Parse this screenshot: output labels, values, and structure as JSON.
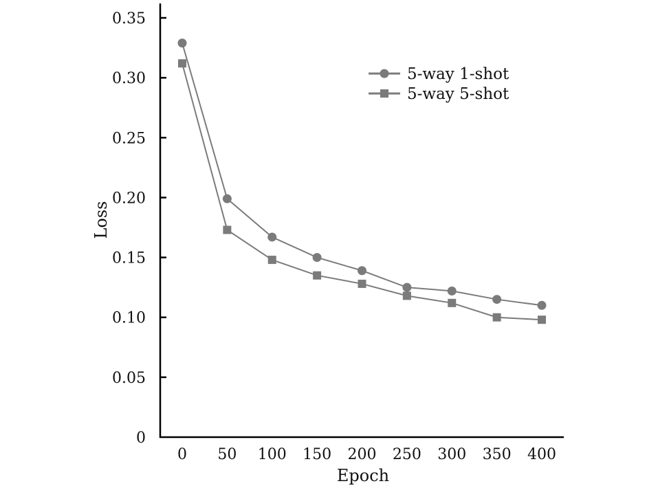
{
  "chart_data": {
    "type": "line",
    "title": "",
    "xlabel": "Epoch",
    "ylabel": "Loss",
    "x": [
      0,
      50,
      100,
      150,
      200,
      250,
      300,
      350,
      400
    ],
    "xlim": [
      -25,
      425
    ],
    "ylim": [
      0,
      0.35
    ],
    "xticks": [
      "0",
      "50",
      "100",
      "150",
      "200",
      "250",
      "300",
      "350",
      "400"
    ],
    "yticks": [
      "0",
      "0.05",
      "0.10",
      "0.15",
      "0.20",
      "0.25",
      "0.30",
      "0.35"
    ],
    "ytick_values": [
      0,
      0.05,
      0.1,
      0.15,
      0.2,
      0.25,
      0.3,
      0.35
    ],
    "grid": false,
    "legend_position": "top-right",
    "series": [
      {
        "name": "5-way 1-shot",
        "marker": "circle",
        "color": "#7b7b7b",
        "values": [
          0.329,
          0.199,
          0.167,
          0.15,
          0.139,
          0.125,
          0.122,
          0.115,
          0.11
        ]
      },
      {
        "name": "5-way 5-shot",
        "marker": "square",
        "color": "#7b7b7b",
        "values": [
          0.312,
          0.173,
          0.148,
          0.135,
          0.128,
          0.118,
          0.112,
          0.1,
          0.098
        ]
      }
    ]
  }
}
